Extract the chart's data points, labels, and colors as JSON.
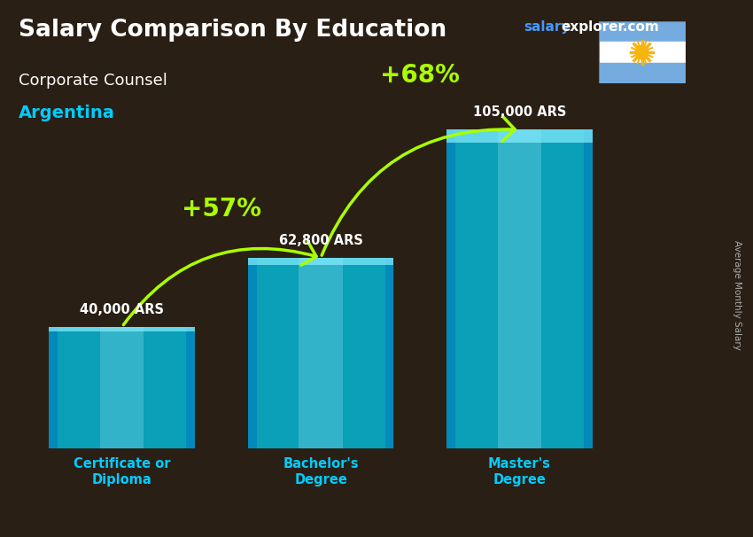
{
  "title": "Salary Comparison By Education",
  "subtitle1": "Corporate Counsel",
  "subtitle2": "Argentina",
  "watermark_salary": "salary",
  "watermark_rest": "explorer.com",
  "ylabel_side": "Average Monthly Salary",
  "categories": [
    "Certificate or\nDiploma",
    "Bachelor's\nDegree",
    "Master's\nDegree"
  ],
  "values": [
    40000,
    62800,
    105000
  ],
  "value_labels": [
    "40,000 ARS",
    "62,800 ARS",
    "105,000 ARS"
  ],
  "pct_labels": [
    "+57%",
    "+68%"
  ],
  "bar_color": "#00ccee",
  "bar_alpha": 0.75,
  "bar_edge_color": "#00eeff",
  "background_color": "#2a1f15",
  "title_color": "#ffffff",
  "subtitle1_color": "#ffffff",
  "subtitle2_color": "#00ccff",
  "watermark_salary_color": "#4499ff",
  "watermark_rest_color": "#ffffff",
  "value_label_color": "#ffffff",
  "pct_label_color": "#aaff00",
  "arrow_color": "#aaff00",
  "xlabel_color": "#00ccff",
  "side_label_color": "#aaaaaa",
  "flag_colors": [
    "#74ACDF",
    "#FFFFFF",
    "#74ACDF"
  ],
  "sun_color": "#F6B40E"
}
